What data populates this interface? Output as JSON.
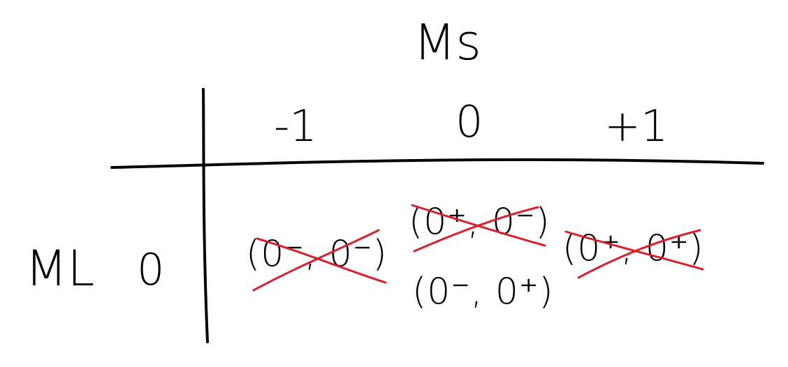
{
  "column_axis_label": "Ms",
  "row_axis_label": "ML",
  "column_headers": [
    "-1",
    "0",
    "+1"
  ],
  "row_header": "0",
  "cells": [
    {
      "column": "-1",
      "entries": [
        {
          "text": "(0⁻, 0⁻)",
          "crossed_out": true
        }
      ]
    },
    {
      "column": "0",
      "entries": [
        {
          "text": "(0⁺, 0⁻)",
          "crossed_out": true
        },
        {
          "text": "(0⁻, 0⁺)",
          "crossed_out": false
        }
      ]
    },
    {
      "column": "+1",
      "entries": [
        {
          "text": "(0⁺, 0⁺)",
          "crossed_out": true
        }
      ]
    }
  ],
  "colors": {
    "ink": "#000000",
    "strike": "#d8202a",
    "background": "#ffffff"
  }
}
